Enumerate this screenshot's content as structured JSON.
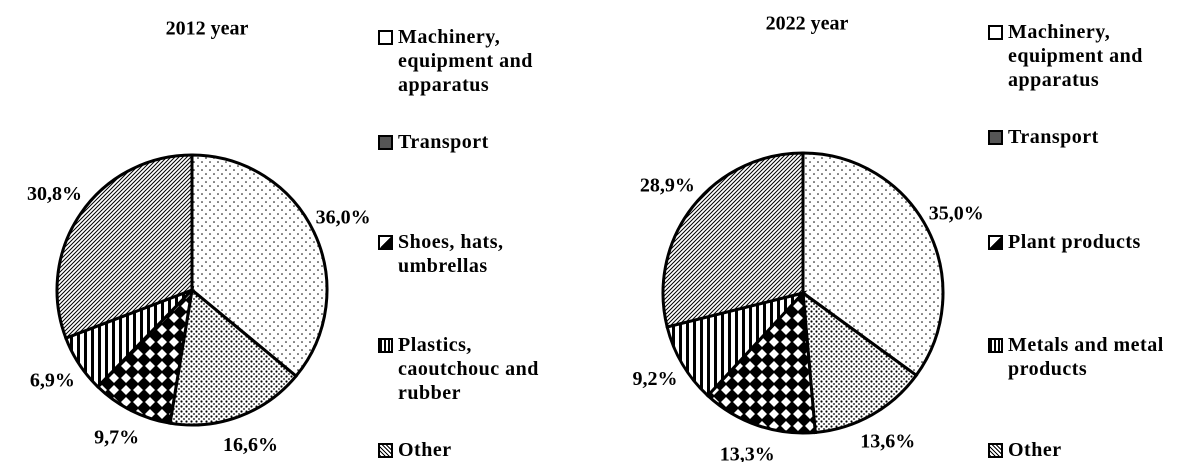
{
  "chart_data": [
    {
      "type": "pie",
      "title": "2012 year",
      "categories": [
        "Machinery, equipment and apparatus",
        "Transport",
        "Shoes, hats, umbrellas",
        "Plastics, caoutchouc and rubber",
        "Other"
      ],
      "values": [
        36.0,
        16.6,
        9.7,
        6.9,
        30.8
      ],
      "value_labels": [
        "36,0%",
        "16,6%",
        "9,7%",
        "6,9%",
        "30,8%"
      ]
    },
    {
      "type": "pie",
      "title": "2022 year",
      "categories": [
        "Machinery, equipment and apparatus",
        "Transport",
        "Plant products",
        "Metals and metal products",
        "Other"
      ],
      "values": [
        35.0,
        13.6,
        13.3,
        9.2,
        28.9
      ],
      "value_labels": [
        "35,0%",
        "13,6%",
        "13,3%",
        "9,2%",
        "28,9%"
      ]
    }
  ]
}
